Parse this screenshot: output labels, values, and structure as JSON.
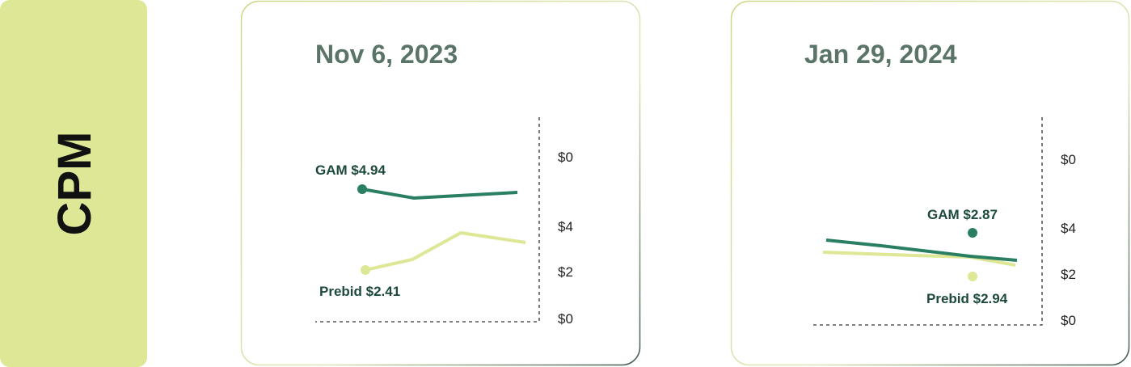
{
  "sidebar": {
    "label": "CPM"
  },
  "cards": [
    {
      "title": "Nov 6, 2023",
      "gam_label": "GAM $4.94",
      "prebid_label": "Prebid $2.41",
      "axis_labels": [
        "$0",
        "$4",
        "$2",
        "$0"
      ]
    },
    {
      "title": "Jan 29, 2024",
      "gam_label": "GAM $2.87",
      "prebid_label": "Prebid $2.94",
      "axis_labels": [
        "$0",
        "$4",
        "$2",
        "$0"
      ]
    }
  ]
}
